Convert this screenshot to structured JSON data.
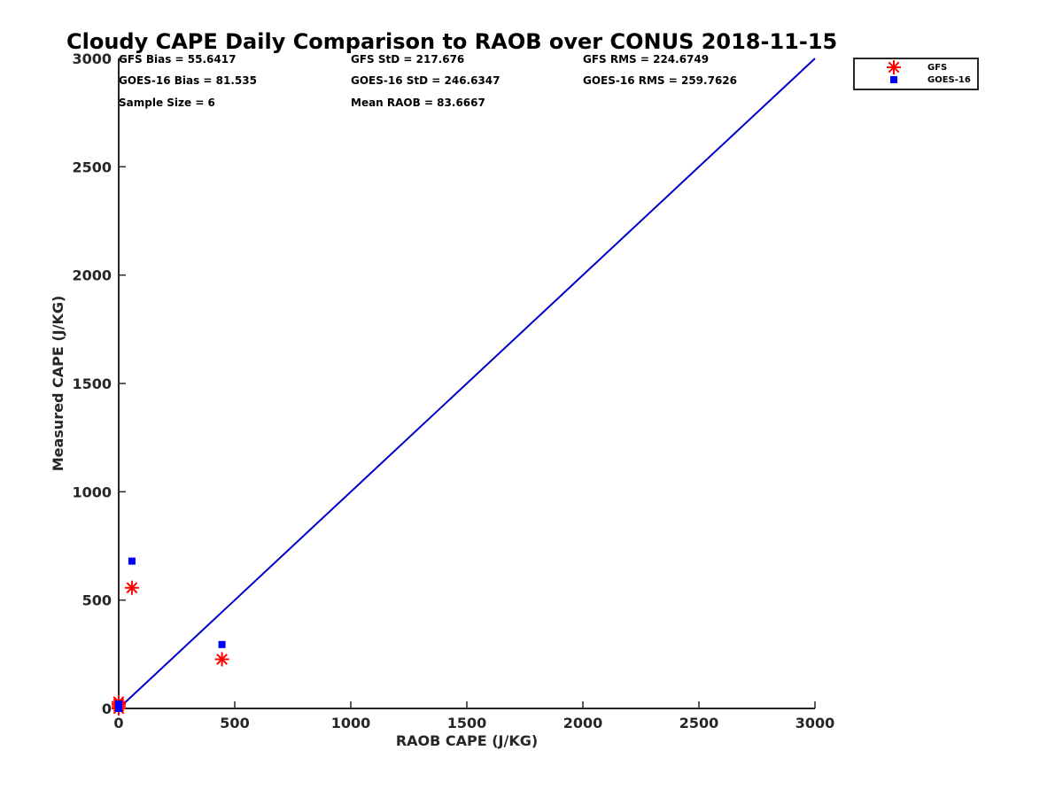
{
  "chart_data": {
    "type": "scatter",
    "title": "Cloudy CAPE Daily Comparison to RAOB over CONUS 2018-11-15",
    "xlabel": "RAOB CAPE (J/KG)",
    "ylabel": "Measured CAPE (J/KG)",
    "xlim": [
      0,
      3000
    ],
    "ylim": [
      0,
      3000
    ],
    "xticks": [
      0,
      500,
      1000,
      1500,
      2000,
      2500,
      3000
    ],
    "yticks": [
      0,
      500,
      1000,
      1500,
      2000,
      2500,
      3000
    ],
    "grid": false,
    "legend_position": "top-right outside",
    "stats": [
      [
        "GFS Bias = 55.6417",
        "GFS StD = 217.676",
        "GFS RMS = 224.6749"
      ],
      [
        "GOES-16 Bias = 81.535",
        "GOES-16 StD = 246.6347",
        "GOES-16 RMS = 259.7626"
      ],
      [
        "Sample Size = 6",
        "Mean RAOB = 83.6667"
      ]
    ],
    "series": [
      {
        "name": "GFS",
        "marker": "asterisk",
        "color": "#ff0000",
        "points": [
          [
            0,
            0
          ],
          [
            0,
            10
          ],
          [
            0,
            20
          ],
          [
            0,
            30
          ],
          [
            57,
            557
          ],
          [
            445,
            227
          ]
        ]
      },
      {
        "name": "GOES-16",
        "marker": "square",
        "color": "#0000ff",
        "points": [
          [
            0,
            0
          ],
          [
            0,
            10
          ],
          [
            0,
            20
          ],
          [
            0,
            15
          ],
          [
            57,
            680
          ],
          [
            445,
            295
          ]
        ]
      }
    ],
    "reference_line": {
      "color": "#0000cc",
      "points": [
        [
          0,
          0
        ],
        [
          3000,
          3000
        ]
      ]
    }
  }
}
